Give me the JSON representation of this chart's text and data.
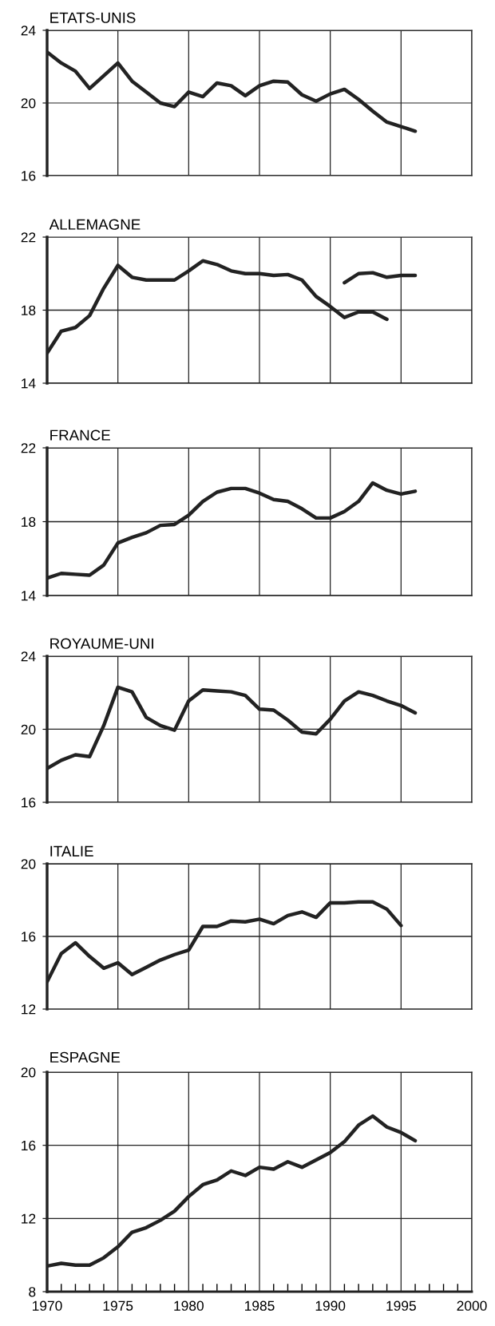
{
  "chart_data": [
    {
      "type": "line",
      "title": "ETATS-UNIS",
      "x": [
        1970,
        1971,
        1972,
        1973,
        1974,
        1975,
        1976,
        1977,
        1978,
        1979,
        1980,
        1981,
        1982,
        1983,
        1984,
        1985,
        1986,
        1987,
        1988,
        1989,
        1990,
        1991,
        1992,
        1993,
        1994,
        1995,
        1996
      ],
      "series": [
        {
          "color": "#222222",
          "values": [
            22.8,
            22.2,
            21.75,
            20.8,
            21.5,
            22.2,
            21.2,
            20.6,
            20.0,
            19.8,
            20.6,
            20.35,
            21.1,
            20.95,
            20.4,
            20.95,
            21.2,
            21.15,
            20.45,
            20.1,
            20.5,
            20.75,
            20.2,
            19.55,
            18.95,
            18.7,
            18.45
          ]
        }
      ],
      "xlim": [
        1970,
        2000
      ],
      "xticks": [
        1970,
        1975,
        1980,
        1985,
        1990,
        1995,
        2000
      ],
      "ylim": [
        16,
        24
      ],
      "yticks": [
        16,
        20,
        24
      ],
      "grid": true,
      "tick_labels": "y"
    },
    {
      "type": "line",
      "title": "ALLEMAGNE",
      "x": [
        1970,
        1971,
        1972,
        1973,
        1974,
        1975,
        1976,
        1977,
        1978,
        1979,
        1980,
        1981,
        1982,
        1983,
        1984,
        1985,
        1986,
        1987,
        1988,
        1989,
        1990,
        1991,
        1992,
        1993,
        1994
      ],
      "series": [
        {
          "color": "#222222",
          "values": [
            15.65,
            16.85,
            17.05,
            17.7,
            19.2,
            20.45,
            19.8,
            19.65,
            19.65,
            19.65,
            20.15,
            20.7,
            20.5,
            20.15,
            20.0,
            20.0,
            19.9,
            19.95,
            19.65,
            18.75,
            18.2,
            17.6,
            17.9,
            17.9,
            17.5
          ]
        },
        {
          "color": "#222222",
          "x": [
            1991,
            1992,
            1993,
            1994,
            1995,
            1996
          ],
          "values": [
            19.5,
            20.0,
            20.05,
            19.8,
            19.9,
            19.9
          ]
        }
      ],
      "xlim": [
        1970,
        2000
      ],
      "xticks": [
        1970,
        1975,
        1980,
        1985,
        1990,
        1995,
        2000
      ],
      "ylim": [
        14,
        22
      ],
      "yticks": [
        14,
        18,
        22
      ],
      "grid": true,
      "tick_labels": "y"
    },
    {
      "type": "line",
      "title": "FRANCE",
      "x": [
        1970,
        1971,
        1972,
        1973,
        1974,
        1975,
        1976,
        1977,
        1978,
        1979,
        1980,
        1981,
        1982,
        1983,
        1984,
        1985,
        1986,
        1987,
        1988,
        1989,
        1990,
        1991,
        1992,
        1993,
        1994,
        1995,
        1996
      ],
      "series": [
        {
          "color": "#222222",
          "values": [
            14.95,
            15.2,
            15.15,
            15.1,
            15.65,
            16.85,
            17.15,
            17.4,
            17.8,
            17.85,
            18.35,
            19.1,
            19.6,
            19.8,
            19.8,
            19.55,
            19.2,
            19.1,
            18.7,
            18.2,
            18.2,
            18.55,
            19.1,
            20.1,
            19.7,
            19.5,
            19.65
          ]
        }
      ],
      "xlim": [
        1970,
        2000
      ],
      "xticks": [
        1970,
        1975,
        1980,
        1985,
        1990,
        1995,
        2000
      ],
      "ylim": [
        14,
        22
      ],
      "yticks": [
        14,
        18,
        22
      ],
      "grid": true,
      "tick_labels": "y"
    },
    {
      "type": "line",
      "title": "ROYAUME-UNI",
      "x": [
        1970,
        1971,
        1972,
        1973,
        1974,
        1975,
        1976,
        1977,
        1978,
        1979,
        1980,
        1981,
        1982,
        1983,
        1984,
        1985,
        1986,
        1987,
        1988,
        1989,
        1990,
        1991,
        1992,
        1993,
        1994,
        1995,
        1996
      ],
      "series": [
        {
          "color": "#222222",
          "values": [
            17.85,
            18.3,
            18.6,
            18.5,
            20.2,
            22.3,
            22.05,
            20.65,
            20.2,
            19.95,
            21.55,
            22.15,
            22.1,
            22.05,
            21.85,
            21.1,
            21.05,
            20.5,
            19.85,
            19.75,
            20.55,
            21.55,
            22.05,
            21.85,
            21.55,
            21.3,
            20.9
          ]
        }
      ],
      "xlim": [
        1970,
        2000
      ],
      "xticks": [
        1970,
        1975,
        1980,
        1985,
        1990,
        1995,
        2000
      ],
      "ylim": [
        16,
        24
      ],
      "yticks": [
        16,
        20,
        24
      ],
      "grid": true,
      "tick_labels": "y"
    },
    {
      "type": "line",
      "title": "ITALIE",
      "x": [
        1970,
        1971,
        1972,
        1973,
        1974,
        1975,
        1976,
        1977,
        1978,
        1979,
        1980,
        1981,
        1982,
        1983,
        1984,
        1985,
        1986,
        1987,
        1988,
        1989,
        1990,
        1991,
        1992,
        1993,
        1994,
        1995
      ],
      "series": [
        {
          "color": "#222222",
          "values": [
            13.5,
            15.05,
            15.65,
            14.9,
            14.25,
            14.55,
            13.9,
            14.3,
            14.7,
            15.0,
            15.25,
            16.55,
            16.55,
            16.85,
            16.8,
            16.95,
            16.7,
            17.15,
            17.35,
            17.05,
            17.85,
            17.85,
            17.9,
            17.9,
            17.5,
            16.6
          ]
        }
      ],
      "xlim": [
        1970,
        2000
      ],
      "xticks": [
        1970,
        1975,
        1980,
        1985,
        1990,
        1995,
        2000
      ],
      "ylim": [
        12,
        20
      ],
      "yticks": [
        12,
        16,
        20
      ],
      "grid": true,
      "tick_labels": "y"
    },
    {
      "type": "line",
      "title": "ESPAGNE",
      "x": [
        1970,
        1971,
        1972,
        1973,
        1974,
        1975,
        1976,
        1977,
        1978,
        1979,
        1980,
        1981,
        1982,
        1983,
        1984,
        1985,
        1986,
        1987,
        1988,
        1989,
        1990,
        1991,
        1992,
        1993,
        1994,
        1995,
        1996
      ],
      "series": [
        {
          "color": "#222222",
          "values": [
            9.4,
            9.55,
            9.45,
            9.45,
            9.85,
            10.45,
            11.25,
            11.5,
            11.9,
            12.4,
            13.2,
            13.85,
            14.1,
            14.6,
            14.35,
            14.8,
            14.7,
            15.1,
            14.8,
            15.2,
            15.6,
            16.2,
            17.1,
            17.6,
            17.0,
            16.7,
            16.25
          ]
        }
      ],
      "xlim": [
        1970,
        2000
      ],
      "xticks": [
        1970,
        1975,
        1980,
        1985,
        1990,
        1995,
        2000
      ],
      "ylim": [
        8,
        20
      ],
      "yticks": [
        8,
        12,
        16,
        20
      ],
      "grid": true
    }
  ]
}
